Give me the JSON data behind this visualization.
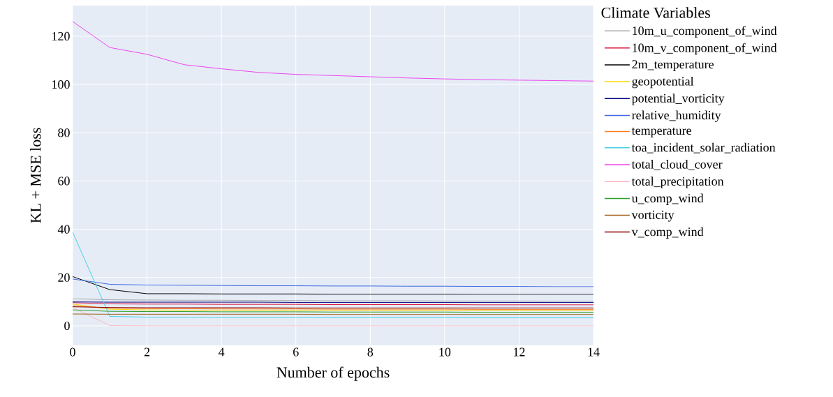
{
  "chart_data": {
    "type": "line",
    "xlabel": "Number of epochs",
    "ylabel": "KL + MSE loss",
    "legend_title": "Climate Variables",
    "x": [
      0,
      1,
      2,
      3,
      4,
      5,
      6,
      7,
      8,
      9,
      10,
      11,
      12,
      13,
      14
    ],
    "series": [
      {
        "name": "10m_u_component_of_wind",
        "color": "#a9a9a9",
        "values": [
          11.2,
          10.8,
          10.7,
          10.6,
          10.6,
          10.5,
          10.5,
          10.4,
          10.4,
          10.4,
          10.3,
          10.3,
          10.3,
          10.2,
          10.2
        ]
      },
      {
        "name": "10m_v_component_of_wind",
        "color": "#dc143c",
        "values": [
          9.6,
          9.1,
          9.0,
          9.0,
          8.9,
          8.9,
          8.9,
          8.8,
          8.8,
          8.8,
          8.8,
          8.7,
          8.7,
          8.7,
          8.7
        ]
      },
      {
        "name": "2m_temperature",
        "color": "#000000",
        "values": [
          20.4,
          15.0,
          13.3,
          13.3,
          13.2,
          13.2,
          13.2,
          13.1,
          13.1,
          13.1,
          13.1,
          13.0,
          13.0,
          13.0,
          13.0
        ]
      },
      {
        "name": "geopotential",
        "color": "#ffd700",
        "values": [
          9.0,
          6.9,
          6.6,
          6.5,
          6.5,
          6.4,
          6.4,
          6.4,
          6.3,
          6.3,
          6.3,
          6.3,
          6.2,
          6.2,
          6.2
        ]
      },
      {
        "name": "potential_vorticity",
        "color": "#000080",
        "values": [
          9.9,
          9.8,
          9.8,
          9.8,
          9.8,
          9.8,
          9.7,
          9.7,
          9.7,
          9.7,
          9.7,
          9.7,
          9.7,
          9.7,
          9.7
        ]
      },
      {
        "name": "relative_humidity",
        "color": "#4169e1",
        "values": [
          19.4,
          17.2,
          16.9,
          16.8,
          16.7,
          16.6,
          16.6,
          16.5,
          16.5,
          16.4,
          16.4,
          16.3,
          16.3,
          16.2,
          16.2
        ]
      },
      {
        "name": "temperature",
        "color": "#ff7f27",
        "values": [
          8.3,
          7.3,
          7.1,
          7.1,
          7.0,
          7.0,
          7.0,
          6.9,
          6.9,
          6.9,
          6.9,
          6.8,
          6.8,
          6.8,
          6.8
        ]
      },
      {
        "name": "toa_incident_solar_radiation",
        "color": "#48cfe8",
        "values": [
          38.8,
          3.9,
          3.6,
          3.6,
          3.5,
          3.5,
          3.5,
          3.4,
          3.4,
          3.4,
          3.4,
          3.3,
          3.3,
          3.3,
          3.3
        ]
      },
      {
        "name": "total_cloud_cover",
        "color": "#ee44ee",
        "values": [
          126.1,
          115.3,
          112.5,
          108.2,
          106.5,
          105.0,
          104.2,
          103.7,
          103.2,
          102.7,
          102.3,
          102.0,
          101.8,
          101.6,
          101.4
        ]
      },
      {
        "name": "total_precipitation",
        "color": "#ffb6c1",
        "values": [
          7.6,
          0.1,
          0.0,
          0.0,
          0.0,
          0.0,
          0.0,
          0.0,
          0.0,
          0.0,
          0.0,
          0.0,
          0.0,
          0.0,
          0.0
        ]
      },
      {
        "name": "u_comp_wind",
        "color": "#2ca02c",
        "values": [
          6.6,
          6.0,
          5.9,
          5.9,
          5.8,
          5.8,
          5.8,
          5.7,
          5.7,
          5.7,
          5.7,
          5.6,
          5.6,
          5.6,
          5.6
        ]
      },
      {
        "name": "vorticity",
        "color": "#a0601a",
        "values": [
          4.9,
          4.8,
          4.8,
          4.8,
          4.8,
          4.8,
          4.8,
          4.7,
          4.7,
          4.7,
          4.7,
          4.7,
          4.7,
          4.7,
          4.7
        ]
      },
      {
        "name": "v_comp_wind",
        "color": "#8b0000",
        "values": [
          7.9,
          7.6,
          7.5,
          7.5,
          7.5,
          7.5,
          7.4,
          7.4,
          7.4,
          7.4,
          7.4,
          7.4,
          7.4,
          7.4,
          7.4
        ]
      }
    ],
    "xlim": [
      0,
      14
    ],
    "ylim": [
      -8.1,
      132.7
    ],
    "xticks": [
      0,
      2,
      4,
      6,
      8,
      10,
      12,
      14
    ],
    "yticks": [
      0,
      20,
      40,
      60,
      80,
      100,
      120
    ],
    "grid": true,
    "legend": "top right"
  }
}
